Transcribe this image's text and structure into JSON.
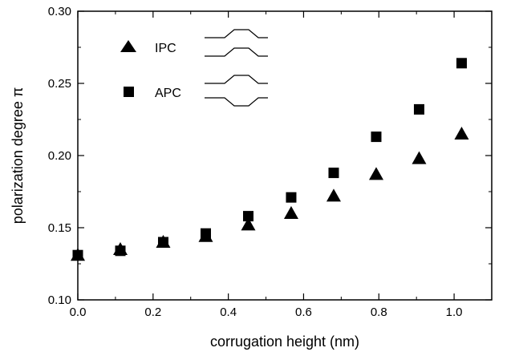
{
  "chart_data": {
    "type": "scatter",
    "xlabel": "corrugation height (nm)",
    "ylabel": "polarization degree π",
    "xlim": [
      0.0,
      1.1
    ],
    "ylim": [
      0.1,
      0.3
    ],
    "x_ticks": [
      0.0,
      0.2,
      0.4,
      0.6,
      0.8,
      1.0
    ],
    "x_tick_labels": [
      "0.0",
      "0.2",
      "0.4",
      "0.6",
      "0.8",
      "1.0"
    ],
    "y_ticks": [
      0.1,
      0.15,
      0.2,
      0.25,
      0.3
    ],
    "y_tick_labels": [
      "0.10",
      "0.15",
      "0.20",
      "0.25",
      "0.30"
    ],
    "grid": false,
    "legend_position": "top-left",
    "series": [
      {
        "name": "IPC",
        "marker": "triangle",
        "color": "#000000",
        "points": [
          {
            "x": 0.0,
            "y": 0.131
          },
          {
            "x": 0.113,
            "y": 0.135
          },
          {
            "x": 0.227,
            "y": 0.14
          },
          {
            "x": 0.34,
            "y": 0.144
          },
          {
            "x": 0.453,
            "y": 0.152
          },
          {
            "x": 0.567,
            "y": 0.16
          },
          {
            "x": 0.68,
            "y": 0.172
          },
          {
            "x": 0.793,
            "y": 0.187
          },
          {
            "x": 0.907,
            "y": 0.198
          },
          {
            "x": 1.02,
            "y": 0.215
          }
        ]
      },
      {
        "name": "APC",
        "marker": "square",
        "color": "#000000",
        "points": [
          {
            "x": 0.0,
            "y": 0.131
          },
          {
            "x": 0.113,
            "y": 0.134
          },
          {
            "x": 0.227,
            "y": 0.14
          },
          {
            "x": 0.34,
            "y": 0.146
          },
          {
            "x": 0.453,
            "y": 0.158
          },
          {
            "x": 0.567,
            "y": 0.171
          },
          {
            "x": 0.68,
            "y": 0.188
          },
          {
            "x": 0.793,
            "y": 0.213
          },
          {
            "x": 0.907,
            "y": 0.232
          },
          {
            "x": 1.02,
            "y": 0.264
          }
        ]
      }
    ]
  }
}
